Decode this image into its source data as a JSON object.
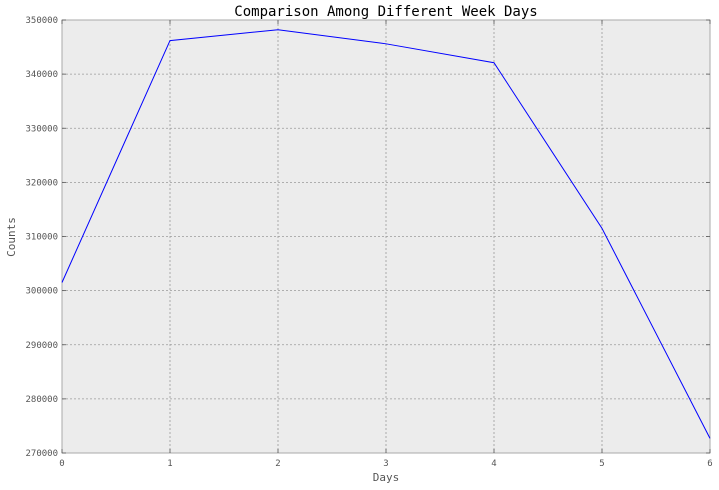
{
  "chart_data": {
    "type": "line",
    "title": "Comparison Among Different Week Days",
    "xlabel": "Days",
    "ylabel": "Counts",
    "x": [
      0,
      1,
      2,
      3,
      4,
      5,
      6
    ],
    "series": [
      {
        "values": [
          301500,
          346200,
          348200,
          345600,
          342100,
          311500,
          272700
        ],
        "color": "#0000ff"
      }
    ],
    "xlim": [
      0,
      6
    ],
    "ylim": [
      270000,
      350000
    ],
    "xticks": [
      "0",
      "1",
      "2",
      "3",
      "4",
      "5",
      "6"
    ],
    "yticks": [
      "270000",
      "280000",
      "290000",
      "300000",
      "310000",
      "320000",
      "330000",
      "340000",
      "350000"
    ],
    "grid": true,
    "plot_background": "#ececec"
  }
}
